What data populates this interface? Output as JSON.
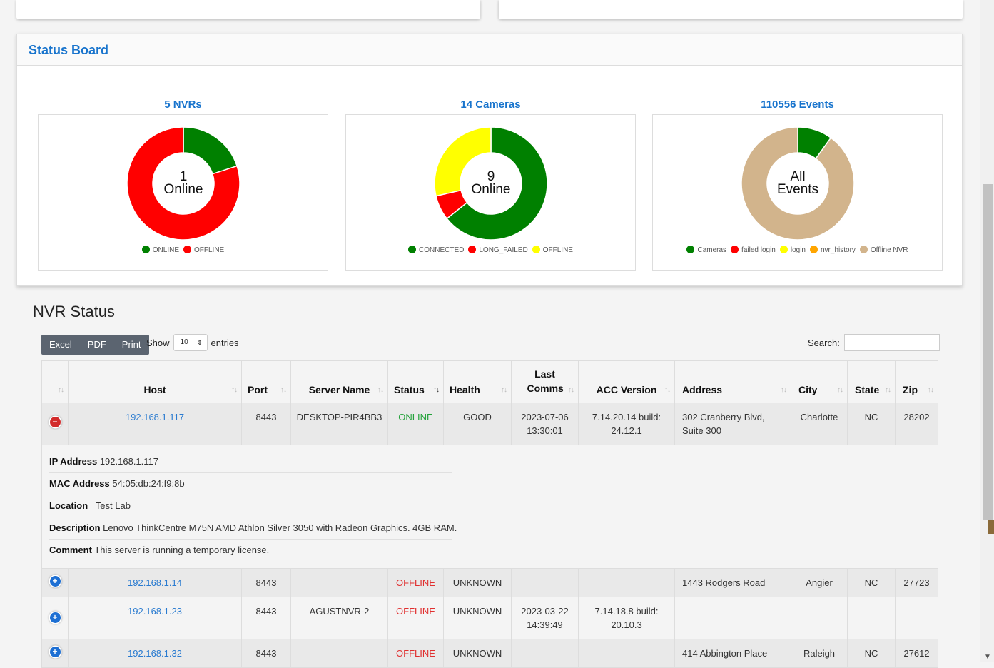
{
  "status_board": {
    "title": "Status Board",
    "charts": [
      {
        "heading": "5 NVRs",
        "center_line1": "1",
        "center_line2": "Online",
        "legend": [
          {
            "label": "ONLINE",
            "color": "#008000"
          },
          {
            "label": "OFFLINE",
            "color": "#ff0000"
          }
        ]
      },
      {
        "heading": "14 Cameras",
        "center_line1": "9",
        "center_line2": "Online",
        "legend": [
          {
            "label": "CONNECTED",
            "color": "#008000"
          },
          {
            "label": "LONG_FAILED",
            "color": "#ff0000"
          },
          {
            "label": "OFFLINE",
            "color": "#ffff00"
          }
        ]
      },
      {
        "heading": "110556 Events",
        "center_line1": "All",
        "center_line2": "Events",
        "legend": [
          {
            "label": "Cameras",
            "color": "#008000"
          },
          {
            "label": "failed login",
            "color": "#ff0000"
          },
          {
            "label": "login",
            "color": "#ffff00"
          },
          {
            "label": "nvr_history",
            "color": "#ffa500"
          },
          {
            "label": "Offline NVR",
            "color": "#d2b48c"
          }
        ]
      }
    ]
  },
  "chart_data": [
    {
      "type": "pie",
      "categories": [
        "ONLINE",
        "OFFLINE"
      ],
      "values": [
        1,
        4
      ],
      "colors": [
        "#008000",
        "#ff0000"
      ]
    },
    {
      "type": "pie",
      "categories": [
        "CONNECTED",
        "LONG_FAILED",
        "OFFLINE"
      ],
      "values": [
        9,
        1,
        4
      ],
      "colors": [
        "#008000",
        "#ff0000",
        "#ffff00"
      ]
    },
    {
      "type": "pie",
      "categories": [
        "Cameras",
        "failed login",
        "login",
        "nvr_history",
        "Offline NVR"
      ],
      "values": [
        10,
        0,
        0,
        0,
        90
      ],
      "colors": [
        "#008000",
        "#ff0000",
        "#ffff00",
        "#ffa500",
        "#d2b48c"
      ]
    }
  ],
  "nvr_status": {
    "title": "NVR Status",
    "buttons": {
      "excel": "Excel",
      "pdf": "PDF",
      "print": "Print"
    },
    "show_label": "Show",
    "entries_value": "10",
    "entries_label": "entries",
    "search_label": "Search:",
    "columns": [
      "Host",
      "Port",
      "Server Name",
      "Status",
      "Health",
      "Last Comms",
      "ACC Version",
      "Address",
      "City",
      "State",
      "Zip"
    ],
    "rows": [
      {
        "host": "192.168.1.117",
        "port": "8443",
        "server": "DESKTOP-PIR4BB3",
        "status": "ONLINE",
        "health": "GOOD",
        "last_comms": "2023-07-06 13:30:01",
        "acc": "7.14.20.14 build: 24.12.1",
        "address": "302 Cranberry Blvd, Suite 300",
        "city": "Charlotte",
        "state": "NC",
        "zip": "28202"
      },
      {
        "host": "192.168.1.14",
        "port": "8443",
        "server": "",
        "status": "OFFLINE",
        "health": "UNKNOWN",
        "last_comms": "",
        "acc": "",
        "address": "1443 Rodgers Road",
        "city": "Angier",
        "state": "NC",
        "zip": "27723"
      },
      {
        "host": "192.168.1.23",
        "port": "8443",
        "server": "AGUSTNVR-2",
        "status": "OFFLINE",
        "health": "UNKNOWN",
        "last_comms": "2023-03-22 14:39:49",
        "acc": "7.14.18.8 build: 20.10.3",
        "address": "",
        "city": "",
        "state": "",
        "zip": ""
      },
      {
        "host": "192.168.1.32",
        "port": "8443",
        "server": "",
        "status": "OFFLINE",
        "health": "UNKNOWN",
        "last_comms": "",
        "acc": "",
        "address": "414 Abbington Place",
        "city": "Raleigh",
        "state": "NC",
        "zip": "27612"
      }
    ],
    "detail": {
      "ip_label": "IP Address",
      "ip_value": "192.168.1.117",
      "mac_label": "MAC Address",
      "mac_value": "54:05:db:24:f9:8b",
      "location_label": "Location",
      "location_value": "Test Lab",
      "description_label": "Description",
      "description_value": "Lenovo ThinkCentre M75N AMD Athlon Silver 3050 with Radeon Graphics. 4GB RAM.",
      "comment_label": "Comment",
      "comment_value": "This server is running a temporary license."
    }
  }
}
